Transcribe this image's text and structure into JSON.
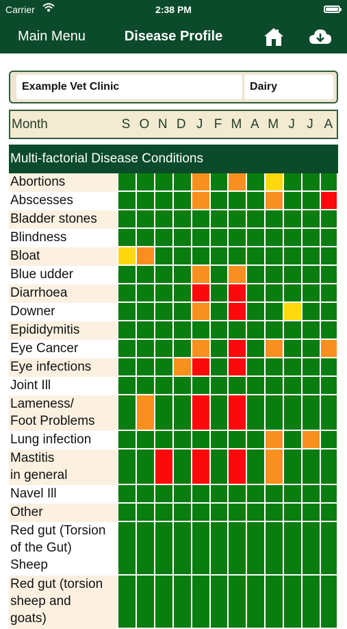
{
  "status_bar": {
    "carrier": "Carrier",
    "time": "2:38 PM"
  },
  "nav": {
    "back_label": "Main Menu",
    "title": "Disease Profile",
    "home_icon": "home-icon",
    "cloud_icon": "cloud-download-icon"
  },
  "clinic": {
    "name": "Example Vet Clinic",
    "type": "Dairy"
  },
  "months_header": {
    "label": "Month",
    "months": [
      "S",
      "O",
      "N",
      "D",
      "J",
      "F",
      "M",
      "A",
      "M",
      "J",
      "J",
      "A"
    ]
  },
  "section_title": "Multi-factorial Disease Conditions",
  "colors": {
    "green": "#0a7d10",
    "orange": "#f7901e",
    "red": "#fa0a0a",
    "yellow": "#fcd80c",
    "nav": "#0b4a2a"
  },
  "diseases": [
    {
      "name": "Abortions",
      "cells": [
        "G",
        "G",
        "G",
        "G",
        "O",
        "G",
        "O",
        "G",
        "Y",
        "G",
        "G",
        "G"
      ]
    },
    {
      "name": "Abscesses",
      "cells": [
        "G",
        "G",
        "G",
        "G",
        "O",
        "G",
        "G",
        "G",
        "O",
        "G",
        "G",
        "R"
      ]
    },
    {
      "name": "Bladder stones",
      "cells": [
        "G",
        "G",
        "G",
        "G",
        "G",
        "G",
        "G",
        "G",
        "G",
        "G",
        "G",
        "G"
      ]
    },
    {
      "name": "Blindness",
      "cells": [
        "G",
        "G",
        "G",
        "G",
        "G",
        "G",
        "G",
        "G",
        "G",
        "G",
        "G",
        "G"
      ]
    },
    {
      "name": "Bloat",
      "cells": [
        "Y",
        "O",
        "G",
        "G",
        "G",
        "G",
        "G",
        "G",
        "G",
        "G",
        "G",
        "G"
      ]
    },
    {
      "name": "Blue udder",
      "cells": [
        "G",
        "G",
        "G",
        "G",
        "O",
        "G",
        "O",
        "G",
        "G",
        "G",
        "G",
        "G"
      ]
    },
    {
      "name": "Diarrhoea",
      "cells": [
        "G",
        "G",
        "G",
        "G",
        "R",
        "G",
        "R",
        "G",
        "G",
        "G",
        "G",
        "G"
      ]
    },
    {
      "name": "Downer",
      "cells": [
        "G",
        "G",
        "G",
        "G",
        "O",
        "G",
        "R",
        "G",
        "G",
        "Y",
        "G",
        "G"
      ]
    },
    {
      "name": "Epididymitis",
      "cells": [
        "G",
        "G",
        "G",
        "G",
        "G",
        "G",
        "G",
        "G",
        "G",
        "G",
        "G",
        "G"
      ]
    },
    {
      "name": "Eye Cancer",
      "cells": [
        "G",
        "G",
        "G",
        "G",
        "O",
        "G",
        "R",
        "G",
        "O",
        "G",
        "G",
        "O"
      ]
    },
    {
      "name": "Eye infections",
      "cells": [
        "G",
        "G",
        "G",
        "O",
        "R",
        "G",
        "R",
        "G",
        "G",
        "G",
        "G",
        "G"
      ]
    },
    {
      "name": "Joint Ill",
      "cells": [
        "G",
        "G",
        "G",
        "G",
        "G",
        "G",
        "G",
        "G",
        "G",
        "G",
        "G",
        "G"
      ]
    },
    {
      "name": "Lameness/\nFoot Problems",
      "cells": [
        "G",
        "O",
        "G",
        "G",
        "R",
        "G",
        "R",
        "G",
        "G",
        "G",
        "G",
        "G"
      ]
    },
    {
      "name": "Lung infection",
      "cells": [
        "G",
        "G",
        "G",
        "G",
        "G",
        "G",
        "G",
        "G",
        "O",
        "G",
        "O",
        "G"
      ]
    },
    {
      "name": "Mastitis\nin general",
      "cells": [
        "G",
        "G",
        "R",
        "G",
        "R",
        "G",
        "R",
        "G",
        "O",
        "G",
        "G",
        "G"
      ]
    },
    {
      "name": "Navel Ill",
      "cells": [
        "G",
        "G",
        "G",
        "G",
        "G",
        "G",
        "G",
        "G",
        "G",
        "G",
        "G",
        "G"
      ]
    },
    {
      "name": "Other",
      "cells": [
        "G",
        "G",
        "G",
        "G",
        "G",
        "G",
        "G",
        "G",
        "G",
        "G",
        "G",
        "G"
      ]
    },
    {
      "name": "Red gut (Torsion\nof the Gut)\nSheep",
      "cells": [
        "G",
        "G",
        "G",
        "G",
        "G",
        "G",
        "G",
        "G",
        "G",
        "G",
        "G",
        "G"
      ]
    },
    {
      "name": "Red gut (torsion\nsheep and\ngoats)",
      "cells": [
        "G",
        "G",
        "G",
        "G",
        "G",
        "G",
        "G",
        "G",
        "G",
        "G",
        "G",
        "G"
      ]
    }
  ]
}
